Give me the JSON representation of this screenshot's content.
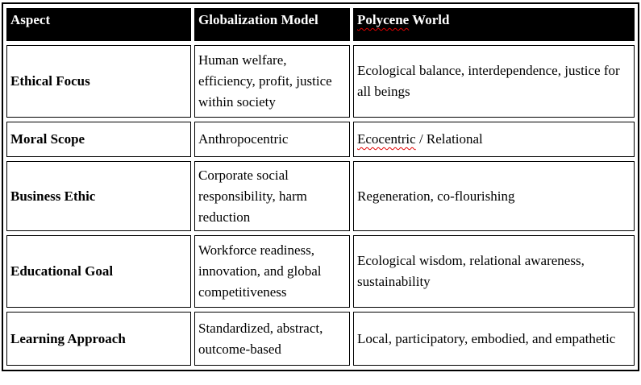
{
  "colors": {
    "page_background": "#ffffff",
    "table_border": "#000000",
    "header_background": "#000000",
    "header_text": "#ffffff",
    "body_text": "#000000",
    "spellcheck_squiggle": "#e00000"
  },
  "table": {
    "header": {
      "aspect": "Aspect",
      "globalization_model": "Globalization Model",
      "polycene_world": {
        "misspelled_word": "Polycene",
        "rest": " World"
      }
    },
    "rows": [
      {
        "aspect": "Ethical Focus",
        "globalization_model": "Human welfare, efficiency, profit, justice within society",
        "polycene_world": "Ecological balance, interdependence, justice for all beings"
      },
      {
        "aspect": "Moral Scope",
        "globalization_model": "Anthropocentric",
        "polycene_world": {
          "misspelled_word": "Ecocentric",
          "rest": " / Relational"
        }
      },
      {
        "aspect": "Business Ethic",
        "globalization_model": "Corporate social responsibility, harm reduction",
        "polycene_world": "Regeneration, co-flourishing"
      },
      {
        "aspect": "Educational Goal",
        "globalization_model": "Workforce readiness, innovation, and global competitiveness",
        "polycene_world": "Ecological wisdom, relational awareness, sustainability"
      },
      {
        "aspect": "Learning Approach",
        "globalization_model": "Standardized, abstract, outcome-based",
        "polycene_world": "Local, participatory, embodied, and empathetic"
      }
    ]
  }
}
